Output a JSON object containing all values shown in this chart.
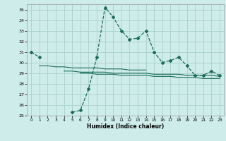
{
  "xlabel": "Humidex (Indice chaleur)",
  "background_color": "#ceecea",
  "grid_color": "#aed4d0",
  "line_color": "#1a6b5a",
  "x_values": [
    0,
    1,
    2,
    3,
    4,
    5,
    6,
    7,
    8,
    9,
    10,
    11,
    12,
    13,
    14,
    15,
    16,
    17,
    18,
    19,
    20,
    21,
    22,
    23
  ],
  "line_main": [
    31.0,
    30.5,
    null,
    null,
    null,
    25.3,
    25.5,
    27.5,
    30.5,
    35.2,
    34.3,
    33.0,
    32.2,
    32.3,
    33.0,
    31.0,
    30.0,
    30.2,
    30.5,
    29.7,
    28.8,
    28.8,
    29.2,
    28.8
  ],
  "line_a": [
    null,
    29.7,
    29.7,
    29.6,
    29.6,
    29.5,
    29.5,
    29.5,
    29.5,
    29.4,
    29.4,
    29.4,
    29.3,
    29.3,
    29.3,
    null,
    null,
    null,
    null,
    null,
    null,
    null,
    null,
    null
  ],
  "line_b": [
    null,
    null,
    null,
    null,
    29.2,
    29.2,
    29.1,
    29.1,
    29.1,
    29.1,
    29.0,
    29.0,
    29.0,
    29.0,
    29.0,
    28.9,
    28.9,
    28.9,
    28.9,
    28.8,
    28.8,
    28.8,
    28.8,
    28.7
  ],
  "line_c": [
    null,
    null,
    null,
    null,
    null,
    null,
    29.0,
    29.0,
    28.9,
    28.9,
    28.9,
    28.8,
    28.8,
    28.8,
    28.8,
    28.7,
    28.7,
    28.7,
    28.6,
    28.6,
    28.6,
    28.5,
    28.5,
    28.5
  ],
  "line_d": [
    null,
    null,
    null,
    29.5,
    null,
    28.8,
    null,
    null,
    null,
    null,
    null,
    null,
    null,
    null,
    null,
    null,
    null,
    null,
    null,
    null,
    null,
    null,
    null,
    null
  ],
  "ylim_min": 25,
  "ylim_max": 35.5,
  "yticks": [
    25,
    26,
    27,
    28,
    29,
    30,
    31,
    32,
    33,
    34,
    35
  ],
  "xticks": [
    0,
    1,
    2,
    3,
    4,
    5,
    6,
    7,
    8,
    9,
    10,
    11,
    12,
    13,
    14,
    15,
    16,
    17,
    18,
    19,
    20,
    21,
    22,
    23
  ],
  "xlim_min": -0.5,
  "xlim_max": 23.5
}
